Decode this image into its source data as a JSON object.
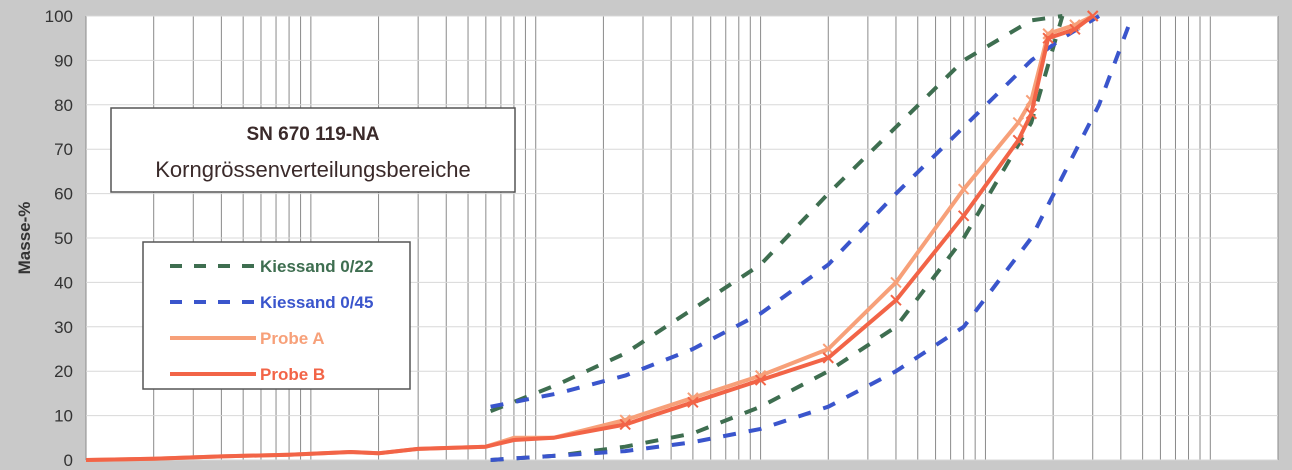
{
  "chart_data": {
    "type": "line",
    "title": "SN 670 119-NA",
    "subtitle": "Korngrössenverteilungsbereiche",
    "xlabel": "",
    "ylabel": "Masse-%",
    "ylim": [
      0,
      100
    ],
    "yticks": [
      "0",
      "10",
      "20",
      "30",
      "40",
      "50",
      "60",
      "70",
      "80",
      "90",
      "100"
    ],
    "xscale": "log",
    "xlim": [
      0.001,
      200
    ],
    "grid": true,
    "legend_position": "left",
    "colors": {
      "kiessand_022": "#3e6e50",
      "kiessand_045": "#3a55cc",
      "probe_a": "#f7a079",
      "probe_b": "#f26447",
      "plot_bg": "#ffffff",
      "grid": "#8a8a8a"
    },
    "series": [
      {
        "name": "Kiessand 0/22",
        "style": "dashed",
        "colorKey": "kiessand_022",
        "points": [
          [
            0.063,
            11
          ],
          [
            0.125,
            17
          ],
          [
            0.25,
            24
          ],
          [
            0.5,
            34
          ],
          [
            1,
            44
          ],
          [
            2,
            60
          ],
          [
            4,
            75
          ],
          [
            8,
            90
          ],
          [
            16,
            99
          ],
          [
            22,
            100
          ]
        ]
      },
      {
        "name": "Kiessand 0/22",
        "style": "dashed",
        "colorKey": "kiessand_022",
        "legend": false,
        "points": [
          [
            0.063,
            0
          ],
          [
            0.125,
            1
          ],
          [
            0.25,
            3
          ],
          [
            0.5,
            6
          ],
          [
            1,
            12
          ],
          [
            2,
            20
          ],
          [
            4,
            30
          ],
          [
            8,
            50
          ],
          [
            16,
            76
          ],
          [
            22,
            100
          ]
        ]
      },
      {
        "name": "Kiessand 0/45",
        "style": "dashed",
        "colorKey": "kiessand_045",
        "points": [
          [
            0.063,
            12
          ],
          [
            0.125,
            15
          ],
          [
            0.25,
            19
          ],
          [
            0.5,
            25
          ],
          [
            1,
            33
          ],
          [
            2,
            44
          ],
          [
            4,
            60
          ],
          [
            8,
            75
          ],
          [
            16,
            90
          ],
          [
            22,
            95
          ],
          [
            32,
            100
          ]
        ]
      },
      {
        "name": "Kiessand 0/45",
        "style": "dashed",
        "colorKey": "kiessand_045",
        "legend": false,
        "points": [
          [
            0.063,
            0
          ],
          [
            0.125,
            1
          ],
          [
            0.25,
            2
          ],
          [
            0.5,
            4
          ],
          [
            1,
            7
          ],
          [
            2,
            12
          ],
          [
            4,
            20
          ],
          [
            8,
            30
          ],
          [
            16,
            50
          ],
          [
            32,
            80
          ],
          [
            45,
            100
          ]
        ]
      },
      {
        "name": "Probe A",
        "style": "solid",
        "colorKey": "probe_a",
        "points": [
          [
            0.001,
            0
          ],
          [
            0.002,
            0.3
          ],
          [
            0.004,
            0.8
          ],
          [
            0.008,
            1.2
          ],
          [
            0.015,
            1.8
          ],
          [
            0.02,
            1.5
          ],
          [
            0.03,
            2.5
          ],
          [
            0.06,
            3
          ],
          [
            0.08,
            5
          ],
          [
            0.12,
            5
          ],
          [
            0.25,
            9
          ],
          [
            0.5,
            14
          ],
          [
            1,
            19
          ],
          [
            2,
            25
          ],
          [
            4,
            40
          ],
          [
            8,
            61
          ],
          [
            14,
            76
          ],
          [
            16,
            81
          ],
          [
            19,
            96
          ],
          [
            25,
            98
          ],
          [
            30,
            100
          ]
        ]
      },
      {
        "name": "Probe B",
        "style": "solid",
        "colorKey": "probe_b",
        "points": [
          [
            0.001,
            0
          ],
          [
            0.002,
            0.3
          ],
          [
            0.004,
            0.8
          ],
          [
            0.008,
            1.2
          ],
          [
            0.015,
            1.8
          ],
          [
            0.02,
            1.5
          ],
          [
            0.03,
            2.5
          ],
          [
            0.06,
            3
          ],
          [
            0.08,
            4.5
          ],
          [
            0.12,
            5
          ],
          [
            0.25,
            8
          ],
          [
            0.5,
            13
          ],
          [
            1,
            18
          ],
          [
            2,
            23
          ],
          [
            4,
            36
          ],
          [
            8,
            55
          ],
          [
            14,
            72
          ],
          [
            16,
            78
          ],
          [
            19,
            95
          ],
          [
            25,
            97
          ],
          [
            30,
            100
          ]
        ]
      }
    ],
    "legend": [
      {
        "label": "Kiessand 0/22",
        "style": "dashed",
        "colorKey": "kiessand_022"
      },
      {
        "label": "Kiessand 0/45",
        "style": "dashed",
        "colorKey": "kiessand_045"
      },
      {
        "label": "Probe A",
        "style": "solid",
        "colorKey": "probe_a"
      },
      {
        "label": "Probe B",
        "style": "solid",
        "colorKey": "probe_b"
      }
    ]
  }
}
